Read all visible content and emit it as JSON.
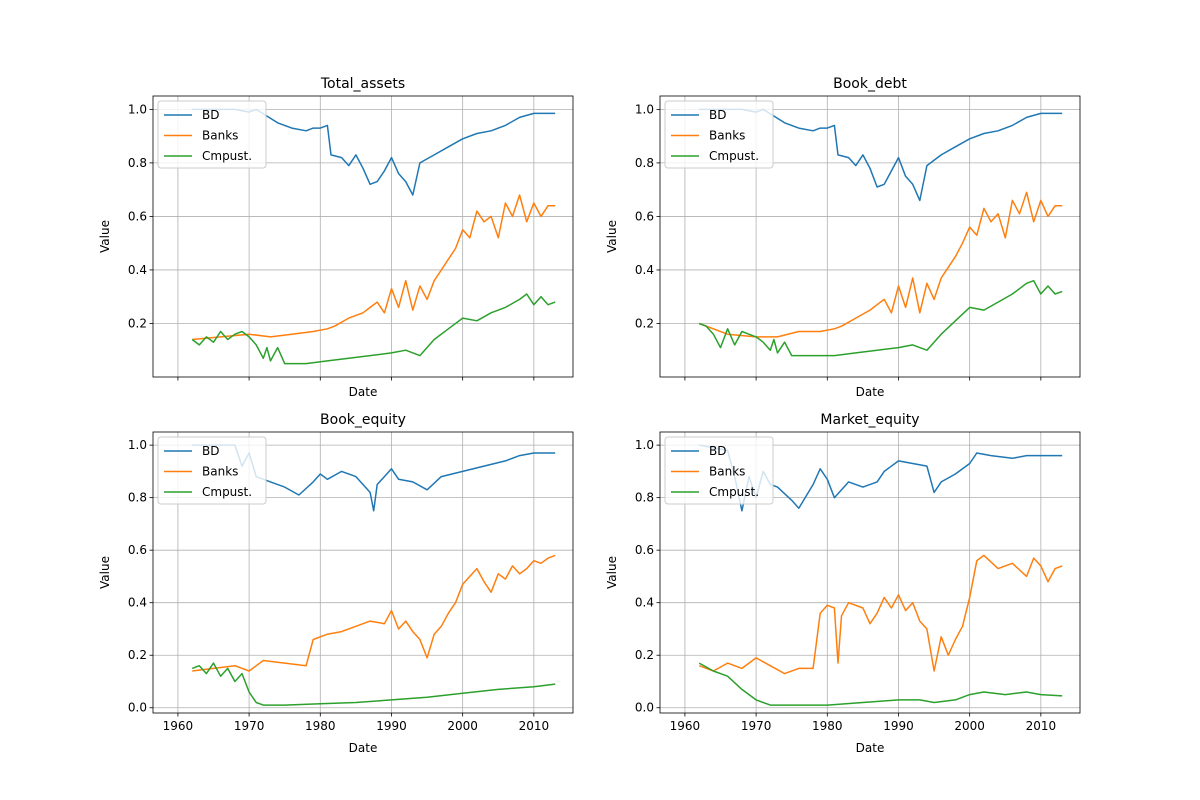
{
  "figure": {
    "xlabel": "Date",
    "ylabel": "Value"
  },
  "chart_data": [
    {
      "type": "line",
      "title": "Total_assets",
      "xlabel": "",
      "ylabel": "Value",
      "xlim": [
        1956.5,
        2015.5
      ],
      "ylim": [
        0.0,
        1.05
      ],
      "xticks": [
        1960,
        1970,
        1980,
        1990,
        2000,
        2010
      ],
      "yticks": [
        0.2,
        0.4,
        0.6,
        0.8,
        1.0
      ],
      "show_xtick_labels": false,
      "grid": true,
      "legend": "upper left",
      "series": [
        {
          "name": "BD",
          "color": "#1f77b4",
          "x": [
            1962,
            1968,
            1970,
            1971,
            1974,
            1976,
            1978,
            1979,
            1980,
            1981,
            1981.5,
            1983,
            1984,
            1985,
            1986,
            1987,
            1988,
            1989,
            1990,
            1991,
            1992,
            1993,
            1994,
            1996,
            1998,
            2000,
            2002,
            2004,
            2006,
            2008,
            2010,
            2013
          ],
          "y": [
            1.0,
            1.0,
            0.99,
            1.0,
            0.95,
            0.93,
            0.92,
            0.93,
            0.93,
            0.94,
            0.83,
            0.82,
            0.79,
            0.83,
            0.78,
            0.72,
            0.73,
            0.77,
            0.82,
            0.76,
            0.73,
            0.68,
            0.8,
            0.83,
            0.86,
            0.89,
            0.91,
            0.92,
            0.94,
            0.97,
            0.985,
            0.985
          ]
        },
        {
          "name": "Banks",
          "color": "#ff7f0e",
          "x": [
            1962,
            1966,
            1970,
            1973,
            1976,
            1979,
            1981,
            1982,
            1984,
            1986,
            1987,
            1988,
            1989,
            1990,
            1991,
            1992,
            1993,
            1994,
            1995,
            1996,
            1997,
            1998,
            1999,
            2000,
            2001,
            2002,
            2003,
            2004,
            2005,
            2006,
            2007,
            2008,
            2009,
            2010,
            2011,
            2012,
            2013
          ],
          "y": [
            0.14,
            0.15,
            0.16,
            0.15,
            0.16,
            0.17,
            0.18,
            0.19,
            0.22,
            0.24,
            0.26,
            0.28,
            0.24,
            0.33,
            0.26,
            0.36,
            0.25,
            0.34,
            0.29,
            0.36,
            0.4,
            0.44,
            0.48,
            0.55,
            0.52,
            0.62,
            0.58,
            0.6,
            0.52,
            0.65,
            0.6,
            0.68,
            0.58,
            0.65,
            0.6,
            0.64,
            0.64
          ]
        },
        {
          "name": "Cmpust.",
          "color": "#2ca02c",
          "x": [
            1962,
            1963,
            1964,
            1965,
            1966,
            1967,
            1968,
            1969,
            1970,
            1971,
            1972,
            1972.5,
            1973,
            1974,
            1975,
            1978,
            1981,
            1984,
            1987,
            1990,
            1992,
            1994,
            1996,
            1998,
            2000,
            2002,
            2004,
            2006,
            2008,
            2009,
            2010,
            2011,
            2012,
            2013
          ],
          "y": [
            0.14,
            0.12,
            0.15,
            0.13,
            0.17,
            0.14,
            0.16,
            0.17,
            0.15,
            0.12,
            0.07,
            0.11,
            0.06,
            0.11,
            0.05,
            0.05,
            0.06,
            0.07,
            0.08,
            0.09,
            0.1,
            0.08,
            0.14,
            0.18,
            0.22,
            0.21,
            0.24,
            0.26,
            0.29,
            0.31,
            0.27,
            0.3,
            0.27,
            0.28
          ]
        }
      ]
    },
    {
      "type": "line",
      "title": "Book_debt",
      "xlabel": "",
      "ylabel": "Value",
      "xlim": [
        1956.5,
        2015.5
      ],
      "ylim": [
        0.0,
        1.05
      ],
      "xticks": [
        1960,
        1970,
        1980,
        1990,
        2000,
        2010
      ],
      "yticks": [
        0.2,
        0.4,
        0.6,
        0.8,
        1.0
      ],
      "show_xtick_labels": false,
      "grid": true,
      "legend": "upper left",
      "series": [
        {
          "name": "BD",
          "color": "#1f77b4",
          "x": [
            1962,
            1968,
            1970,
            1971,
            1974,
            1976,
            1978,
            1979,
            1980,
            1981,
            1981.5,
            1983,
            1984,
            1985,
            1986,
            1987,
            1988,
            1989,
            1990,
            1991,
            1992,
            1993,
            1994,
            1996,
            1998,
            2000,
            2002,
            2004,
            2006,
            2008,
            2010,
            2013
          ],
          "y": [
            1.0,
            1.0,
            0.99,
            1.0,
            0.95,
            0.93,
            0.92,
            0.93,
            0.93,
            0.94,
            0.83,
            0.82,
            0.79,
            0.83,
            0.78,
            0.71,
            0.72,
            0.77,
            0.82,
            0.75,
            0.72,
            0.66,
            0.79,
            0.83,
            0.86,
            0.89,
            0.91,
            0.92,
            0.94,
            0.97,
            0.985,
            0.985
          ]
        },
        {
          "name": "Banks",
          "color": "#ff7f0e",
          "x": [
            1962,
            1966,
            1970,
            1973,
            1976,
            1979,
            1981,
            1982,
            1984,
            1986,
            1987,
            1988,
            1989,
            1990,
            1991,
            1992,
            1993,
            1994,
            1995,
            1996,
            1997,
            1998,
            1999,
            2000,
            2001,
            2002,
            2003,
            2004,
            2005,
            2006,
            2007,
            2008,
            2009,
            2010,
            2011,
            2012,
            2013
          ],
          "y": [
            0.2,
            0.16,
            0.15,
            0.15,
            0.17,
            0.17,
            0.18,
            0.19,
            0.22,
            0.25,
            0.27,
            0.29,
            0.24,
            0.34,
            0.26,
            0.37,
            0.24,
            0.35,
            0.29,
            0.37,
            0.41,
            0.45,
            0.5,
            0.56,
            0.53,
            0.63,
            0.58,
            0.61,
            0.52,
            0.66,
            0.61,
            0.69,
            0.58,
            0.66,
            0.6,
            0.64,
            0.64
          ]
        },
        {
          "name": "Cmpust.",
          "color": "#2ca02c",
          "x": [
            1962,
            1963,
            1964,
            1965,
            1966,
            1967,
            1968,
            1969,
            1970,
            1971,
            1972,
            1972.5,
            1973,
            1974,
            1975,
            1978,
            1981,
            1984,
            1987,
            1990,
            1992,
            1994,
            1996,
            1998,
            2000,
            2002,
            2004,
            2006,
            2008,
            2009,
            2010,
            2011,
            2012,
            2013
          ],
          "y": [
            0.2,
            0.19,
            0.16,
            0.11,
            0.18,
            0.12,
            0.17,
            0.16,
            0.15,
            0.13,
            0.1,
            0.14,
            0.09,
            0.13,
            0.08,
            0.08,
            0.08,
            0.09,
            0.1,
            0.11,
            0.12,
            0.1,
            0.16,
            0.21,
            0.26,
            0.25,
            0.28,
            0.31,
            0.35,
            0.36,
            0.31,
            0.34,
            0.31,
            0.32
          ]
        }
      ]
    },
    {
      "type": "line",
      "title": "Book_equity",
      "xlabel": "Date",
      "ylabel": "Value",
      "xlim": [
        1956.5,
        2015.5
      ],
      "ylim": [
        -0.02,
        1.05
      ],
      "xticks": [
        1960,
        1970,
        1980,
        1990,
        2000,
        2010
      ],
      "yticks": [
        0.0,
        0.2,
        0.4,
        0.6,
        0.8,
        1.0
      ],
      "show_xtick_labels": true,
      "grid": true,
      "legend": "upper left",
      "series": [
        {
          "name": "BD",
          "color": "#1f77b4",
          "x": [
            1962,
            1968,
            1969,
            1970,
            1971,
            1973,
            1975,
            1977,
            1979,
            1980,
            1981,
            1983,
            1985,
            1986,
            1987,
            1987.5,
            1988,
            1989,
            1990,
            1991,
            1993,
            1995,
            1997,
            2000,
            2003,
            2006,
            2008,
            2010,
            2013
          ],
          "y": [
            1.0,
            1.0,
            0.92,
            0.97,
            0.88,
            0.86,
            0.84,
            0.81,
            0.86,
            0.89,
            0.87,
            0.9,
            0.88,
            0.85,
            0.82,
            0.75,
            0.85,
            0.88,
            0.91,
            0.87,
            0.86,
            0.83,
            0.88,
            0.9,
            0.92,
            0.94,
            0.96,
            0.97,
            0.97
          ]
        },
        {
          "name": "Banks",
          "color": "#ff7f0e",
          "x": [
            1962,
            1965,
            1968,
            1970,
            1972,
            1975,
            1978,
            1979,
            1981,
            1983,
            1985,
            1987,
            1989,
            1990,
            1991,
            1992,
            1993,
            1994,
            1995,
            1996,
            1997,
            1998,
            1999,
            2000,
            2001,
            2002,
            2003,
            2004,
            2005,
            2006,
            2007,
            2008,
            2009,
            2010,
            2011,
            2012,
            2013
          ],
          "y": [
            0.14,
            0.15,
            0.16,
            0.14,
            0.18,
            0.17,
            0.16,
            0.26,
            0.28,
            0.29,
            0.31,
            0.33,
            0.32,
            0.37,
            0.3,
            0.33,
            0.29,
            0.26,
            0.19,
            0.28,
            0.31,
            0.36,
            0.4,
            0.47,
            0.5,
            0.53,
            0.48,
            0.44,
            0.51,
            0.49,
            0.54,
            0.51,
            0.53,
            0.56,
            0.55,
            0.57,
            0.58
          ]
        },
        {
          "name": "Cmpust.",
          "color": "#2ca02c",
          "x": [
            1962,
            1963,
            1964,
            1965,
            1966,
            1967,
            1968,
            1969,
            1970,
            1971,
            1972,
            1975,
            1980,
            1985,
            1990,
            1995,
            2000,
            2005,
            2010,
            2013
          ],
          "y": [
            0.15,
            0.16,
            0.13,
            0.17,
            0.12,
            0.15,
            0.1,
            0.13,
            0.06,
            0.02,
            0.01,
            0.01,
            0.015,
            0.02,
            0.03,
            0.04,
            0.055,
            0.07,
            0.08,
            0.09
          ]
        }
      ]
    },
    {
      "type": "line",
      "title": "Market_equity",
      "xlabel": "Date",
      "ylabel": "Value",
      "xlim": [
        1956.5,
        2015.5
      ],
      "ylim": [
        -0.02,
        1.05
      ],
      "xticks": [
        1960,
        1970,
        1980,
        1990,
        2000,
        2010
      ],
      "yticks": [
        0.0,
        0.2,
        0.4,
        0.6,
        0.8,
        1.0
      ],
      "show_xtick_labels": true,
      "grid": true,
      "legend": "upper left",
      "series": [
        {
          "name": "BD",
          "color": "#1f77b4",
          "x": [
            1962,
            1966,
            1967,
            1968,
            1969,
            1970,
            1971,
            1972,
            1973,
            1975,
            1976,
            1978,
            1979,
            1980,
            1981,
            1983,
            1985,
            1987,
            1988,
            1990,
            1992,
            1994,
            1995,
            1996,
            1998,
            2000,
            2001,
            2003,
            2006,
            2008,
            2010,
            2013
          ],
          "y": [
            1.0,
            0.98,
            0.88,
            0.75,
            0.88,
            0.8,
            0.9,
            0.85,
            0.84,
            0.79,
            0.76,
            0.85,
            0.91,
            0.87,
            0.8,
            0.86,
            0.84,
            0.86,
            0.9,
            0.94,
            0.93,
            0.92,
            0.82,
            0.86,
            0.89,
            0.93,
            0.97,
            0.96,
            0.95,
            0.96,
            0.96,
            0.96
          ]
        },
        {
          "name": "Banks",
          "color": "#ff7f0e",
          "x": [
            1962,
            1964,
            1966,
            1968,
            1970,
            1972,
            1974,
            1976,
            1978,
            1979,
            1980,
            1981,
            1981.5,
            1982,
            1983,
            1985,
            1986,
            1987,
            1988,
            1989,
            1990,
            1991,
            1992,
            1993,
            1994,
            1995,
            1996,
            1997,
            1998,
            1999,
            2000,
            2001,
            2002,
            2004,
            2006,
            2008,
            2009,
            2010,
            2011,
            2012,
            2013
          ],
          "y": [
            0.16,
            0.14,
            0.17,
            0.15,
            0.19,
            0.16,
            0.13,
            0.15,
            0.15,
            0.36,
            0.39,
            0.38,
            0.17,
            0.35,
            0.4,
            0.38,
            0.32,
            0.36,
            0.42,
            0.38,
            0.43,
            0.37,
            0.4,
            0.33,
            0.3,
            0.14,
            0.27,
            0.2,
            0.26,
            0.31,
            0.42,
            0.56,
            0.58,
            0.53,
            0.55,
            0.5,
            0.57,
            0.54,
            0.48,
            0.53,
            0.54
          ]
        },
        {
          "name": "Cmpust.",
          "color": "#2ca02c",
          "x": [
            1962,
            1964,
            1966,
            1968,
            1970,
            1972,
            1975,
            1980,
            1985,
            1990,
            1993,
            1995,
            1998,
            2000,
            2002,
            2005,
            2008,
            2010,
            2013
          ],
          "y": [
            0.17,
            0.14,
            0.12,
            0.07,
            0.03,
            0.01,
            0.01,
            0.01,
            0.02,
            0.03,
            0.03,
            0.02,
            0.03,
            0.05,
            0.06,
            0.05,
            0.06,
            0.05,
            0.045
          ]
        }
      ]
    }
  ]
}
